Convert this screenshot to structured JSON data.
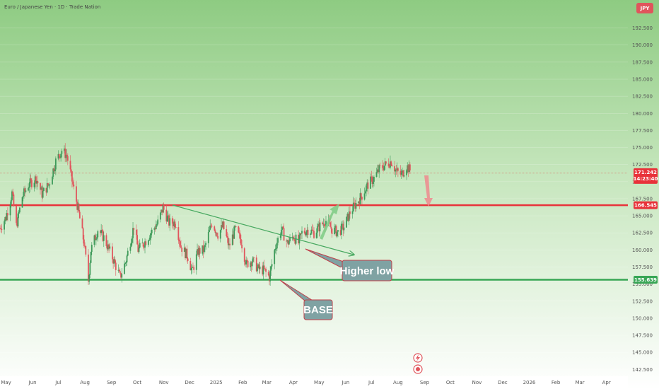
{
  "header": {
    "symbol_line": "Euro / Japanese Yen · 1D · Trade Nation",
    "currency_badge": "JPY"
  },
  "colors": {
    "background_top": "#8ecb82",
    "background_bottom": "#ffffff",
    "up_candle": "#3e9a5a",
    "down_candle": "#e0555c",
    "resistance": "#e8323a",
    "support": "#38a655",
    "trendline": "#46a85f",
    "callout_fill": "#7fa2a3",
    "callout_border": "#c0404a",
    "price_pill": "#e8323a",
    "support_pill": "#38a655"
  },
  "chart_data": {
    "type": "candlestick",
    "title": "Euro / Japanese Yen · 1D · Trade Nation",
    "x_tick_labels": [
      "May",
      "Jun",
      "Jul",
      "Aug",
      "Sep",
      "Oct",
      "Nov",
      "Dec",
      "2025",
      "Feb",
      "Mar",
      "Apr",
      "May",
      "Jun",
      "Jul",
      "Aug",
      "Sep",
      "Oct",
      "Nov",
      "Dec",
      "2026",
      "Feb",
      "Mar",
      "Apr"
    ],
    "y_tick_labels": [
      "192.500",
      "190.000",
      "187.500",
      "185.000",
      "182.500",
      "180.000",
      "177.500",
      "175.000",
      "172.500",
      "170.000",
      "167.500",
      "165.000",
      "162.500",
      "160.000",
      "157.500",
      "155.000",
      "152.500",
      "150.000",
      "147.500",
      "145.000",
      "142.500"
    ],
    "ylim": [
      141.5,
      196.6
    ],
    "x_range": [
      "2024-04-24",
      "2026-04-26"
    ],
    "price_series": [
      {
        "date": "2024-04-24",
        "value": 163.2
      },
      {
        "date": "2024-05-01",
        "value": 164.8
      },
      {
        "date": "2024-05-08",
        "value": 168.3
      },
      {
        "date": "2024-05-13",
        "value": 163.5
      },
      {
        "date": "2024-05-20",
        "value": 167.8
      },
      {
        "date": "2024-05-27",
        "value": 169.5
      },
      {
        "date": "2024-06-05",
        "value": 170.5
      },
      {
        "date": "2024-06-12",
        "value": 168.2
      },
      {
        "date": "2024-06-20",
        "value": 169.6
      },
      {
        "date": "2024-06-28",
        "value": 173.0
      },
      {
        "date": "2024-07-05",
        "value": 174.6
      },
      {
        "date": "2024-07-11",
        "value": 173.8
      },
      {
        "date": "2024-07-18",
        "value": 169.5
      },
      {
        "date": "2024-07-24",
        "value": 166.0
      },
      {
        "date": "2024-07-31",
        "value": 161.0
      },
      {
        "date": "2024-08-05",
        "value": 155.5
      },
      {
        "date": "2024-08-08",
        "value": 160.0
      },
      {
        "date": "2024-08-16",
        "value": 163.0
      },
      {
        "date": "2024-08-23",
        "value": 161.8
      },
      {
        "date": "2024-09-03",
        "value": 158.6
      },
      {
        "date": "2024-09-11",
        "value": 156.0
      },
      {
        "date": "2024-09-18",
        "value": 158.5
      },
      {
        "date": "2024-09-27",
        "value": 163.5
      },
      {
        "date": "2024-10-02",
        "value": 160.0
      },
      {
        "date": "2024-10-10",
        "value": 161.2
      },
      {
        "date": "2024-10-17",
        "value": 162.5
      },
      {
        "date": "2024-10-25",
        "value": 164.0
      },
      {
        "date": "2024-10-31",
        "value": 166.2
      },
      {
        "date": "2024-11-07",
        "value": 164.0
      },
      {
        "date": "2024-11-15",
        "value": 164.0
      },
      {
        "date": "2024-11-21",
        "value": 160.5
      },
      {
        "date": "2024-11-29",
        "value": 159.0
      },
      {
        "date": "2024-12-04",
        "value": 156.8
      },
      {
        "date": "2024-12-11",
        "value": 159.8
      },
      {
        "date": "2024-12-18",
        "value": 160.0
      },
      {
        "date": "2024-12-27",
        "value": 164.0
      },
      {
        "date": "2025-01-03",
        "value": 162.3
      },
      {
        "date": "2025-01-09",
        "value": 163.5
      },
      {
        "date": "2025-01-16",
        "value": 160.5
      },
      {
        "date": "2025-01-23",
        "value": 163.0
      },
      {
        "date": "2025-01-30",
        "value": 161.4
      },
      {
        "date": "2025-02-05",
        "value": 157.9
      },
      {
        "date": "2025-02-12",
        "value": 158.5
      },
      {
        "date": "2025-02-19",
        "value": 157.2
      },
      {
        "date": "2025-02-26",
        "value": 157.0
      },
      {
        "date": "2025-03-04",
        "value": 156.0
      },
      {
        "date": "2025-03-11",
        "value": 160.5
      },
      {
        "date": "2025-03-18",
        "value": 163.0
      },
      {
        "date": "2025-03-25",
        "value": 161.0
      },
      {
        "date": "2025-04-01",
        "value": 162.0
      },
      {
        "date": "2025-04-07",
        "value": 161.0
      },
      {
        "date": "2025-04-11",
        "value": 162.5
      },
      {
        "date": "2025-04-18",
        "value": 163.0
      },
      {
        "date": "2025-04-25",
        "value": 162.5
      },
      {
        "date": "2025-05-02",
        "value": 163.5
      },
      {
        "date": "2025-05-09",
        "value": 164.3
      },
      {
        "date": "2025-05-16",
        "value": 163.0
      },
      {
        "date": "2025-05-23",
        "value": 162.6
      },
      {
        "date": "2025-05-30",
        "value": 163.4
      },
      {
        "date": "2025-06-06",
        "value": 165.5
      },
      {
        "date": "2025-06-13",
        "value": 166.8
      },
      {
        "date": "2025-06-20",
        "value": 168.0
      },
      {
        "date": "2025-06-27",
        "value": 169.6
      },
      {
        "date": "2025-07-04",
        "value": 170.5
      },
      {
        "date": "2025-07-11",
        "value": 172.0
      },
      {
        "date": "2025-07-18",
        "value": 172.5
      },
      {
        "date": "2025-07-24",
        "value": 173.0
      },
      {
        "date": "2025-07-30",
        "value": 171.5
      },
      {
        "date": "2025-08-05",
        "value": 171.0
      },
      {
        "date": "2025-08-11",
        "value": 172.3
      },
      {
        "date": "2025-08-18",
        "value": 171.2
      }
    ],
    "last_price": "171.242",
    "countdown": "14:23:40",
    "resistance_label": "166.545",
    "support_label": "155.639",
    "resistance_level": 166.545,
    "support_level": 155.639,
    "last_price_level": 171.242,
    "annotations": {
      "higher_low": "Higher low",
      "base": "BASE"
    }
  }
}
